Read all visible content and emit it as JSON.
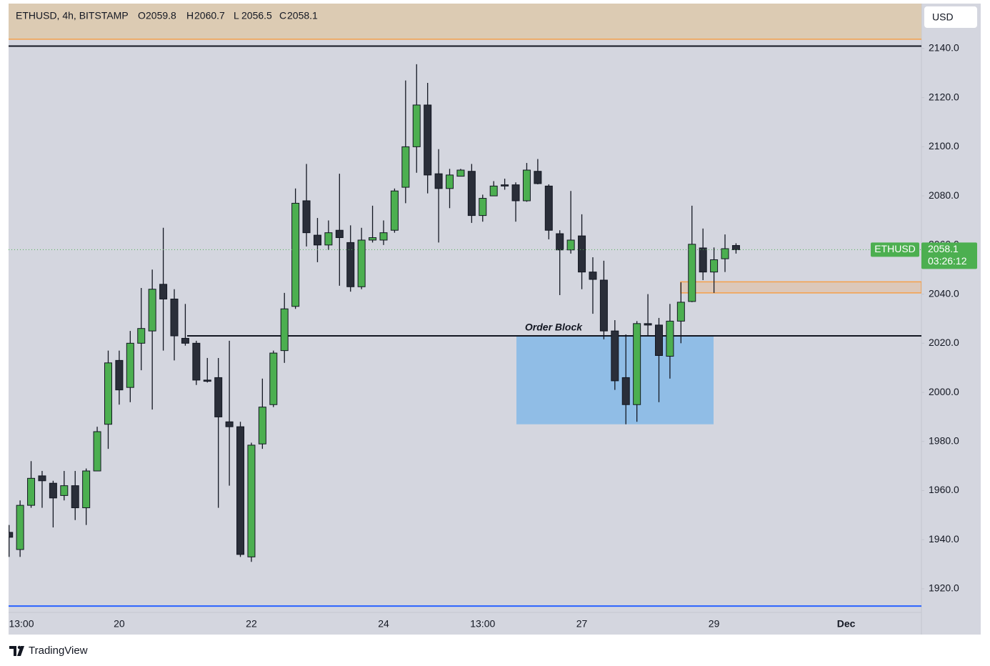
{
  "chart_data": {
    "type": "candlestick",
    "symbol": "ETHUSD, 4h, BITSTAMP",
    "ohlc_labels": [
      "O",
      "H",
      "L",
      "C"
    ],
    "currency": "USD",
    "price_label": "ETHUSD",
    "countdown": "03:26:12",
    "brand": "TradingView",
    "up_color": "#4caf50",
    "down_color": "#2a2e39",
    "categories": [
      null,
      "13:00",
      null,
      null,
      null,
      null,
      null,
      null,
      null,
      null,
      "20",
      null,
      null,
      null,
      null,
      null,
      null,
      null,
      null,
      null,
      null,
      null,
      "22",
      null,
      null,
      null,
      null,
      null,
      null,
      null,
      null,
      null,
      null,
      null,
      "24",
      null,
      null,
      null,
      null,
      null,
      null,
      null,
      null,
      "13:00",
      null,
      null,
      null,
      null,
      null,
      null,
      null,
      null,
      "27",
      null,
      null,
      null,
      null,
      null,
      null,
      null,
      null,
      null,
      null,
      null,
      "29",
      null,
      null,
      null,
      null,
      null,
      null,
      null,
      null,
      null,
      null,
      null,
      "Dec",
      null,
      null,
      null,
      null,
      null,
      null
    ],
    "open": [
      1943,
      1936,
      1954,
      1966,
      1963,
      1958,
      1962,
      1953,
      1968,
      1987,
      2013,
      2002,
      2020,
      2025,
      2044,
      2038,
      2022,
      2020,
      2005,
      2006,
      1988,
      1986,
      1933,
      1979,
      1995,
      2017,
      2035,
      2078,
      2064,
      2060,
      2066,
      2061,
      2043,
      2062,
      2062,
      2066,
      2083.5,
      2100,
      2117,
      2089,
      2083,
      2088,
      2090,
      2072,
      2080,
      2084.5,
      2084.5,
      2078,
      2090,
      2084,
      2064.6,
      2058,
      2063.7,
      2049,
      2045.7,
      2025,
      2006,
      1995,
      2028,
      2027.4,
      2014.7,
      2029,
      2037,
      2058.8,
      2049,
      2054.4,
      2059.8,
      null,
      null,
      null,
      null,
      null,
      null,
      null,
      null,
      null,
      null,
      null,
      null,
      null,
      null,
      null,
      null
    ],
    "high": [
      1946,
      1956,
      1972,
      1968,
      1964,
      1968,
      1968,
      1969,
      1986,
      2017,
      2017,
      2025,
      2042.5,
      2050,
      2067,
      2042,
      2036,
      2021,
      2014,
      2014,
      2021,
      1988,
      1979.5,
      2005.6,
      2017,
      2040.5,
      2083,
      2093,
      2071,
      2070,
      2089,
      2068,
      2067,
      2076,
      2070,
      2083,
      2127,
      2133.6,
      2126,
      2099,
      2091,
      2091,
      2093,
      2080.5,
      2086,
      2087,
      2085.5,
      2093.4,
      2095,
      2084.7,
      2066,
      2082,
      2072.5,
      2055,
      2053.6,
      2029.4,
      2023.6,
      2029,
      2040,
      2030.3,
      2036,
      2044.8,
      2076,
      2066.7,
      2059,
      2064.3,
      2060.7,
      null,
      null,
      null,
      null,
      null,
      null,
      null,
      null,
      null,
      null,
      null,
      null,
      null,
      null,
      null,
      null
    ],
    "low": [
      1933,
      1933,
      1953,
      1953,
      1945,
      1956,
      1948,
      1946,
      1968,
      1977,
      1995,
      1996,
      2009,
      1993,
      2017,
      2013,
      2019,
      2003,
      2004,
      1953,
      1962,
      1933,
      1931,
      1977,
      1994,
      2012,
      2034,
      2059.4,
      2053,
      2058,
      2043.4,
      2041,
      2042,
      2061,
      2060,
      2065,
      2077,
      2089.4,
      2081,
      2061,
      2075,
      2088,
      2069,
      2069.5,
      2080,
      2082.5,
      2069.5,
      2077.6,
      2084.7,
      2062.3,
      2039.6,
      2056.5,
      2042,
      2032,
      2021.6,
      2001,
      1987,
      1988,
      2023,
      1996,
      2005.6,
      2020,
      2036.7,
      2045.7,
      2040.5,
      2049,
      2056.5,
      null,
      null,
      null,
      null,
      null,
      null,
      null,
      null,
      null,
      null,
      null,
      null,
      null,
      null,
      null,
      null
    ],
    "close": [
      1941,
      1954,
      1965,
      1964,
      1957,
      1962,
      1953,
      1968,
      1984,
      2012,
      2001,
      2020,
      2026,
      2042,
      2038,
      2023,
      2020,
      2005,
      2004.5,
      1990,
      1986,
      1934,
      1978.5,
      1994,
      2016,
      2034,
      2077,
      2065,
      2060,
      2065,
      2063,
      2043,
      2062,
      2063,
      2065,
      2082,
      2100,
      2117,
      2088.5,
      2083,
      2088.5,
      2090.5,
      2072,
      2079,
      2084,
      2084,
      2078,
      2090.5,
      2085,
      2066,
      2058,
      2062,
      2049,
      2046,
      2025,
      2004.7,
      1995,
      2028,
      2027.4,
      2015,
      2029,
      2036.7,
      2060.3,
      2049,
      2054,
      2058.5,
      2058.1,
      null,
      null,
      null,
      null,
      null,
      null,
      null,
      null,
      null,
      null,
      null,
      null,
      null,
      null,
      null,
      null
    ],
    "ylim": [
      1910.4,
      2158.3
    ],
    "yticks": [
      {
        "value": 1920,
        "label": "1920.0"
      },
      {
        "value": 1940,
        "label": "1940.0"
      },
      {
        "value": 1960,
        "label": "1960.0"
      },
      {
        "value": 1980,
        "label": "1980.0"
      },
      {
        "value": 2000,
        "label": "2000.0"
      },
      {
        "value": 2020,
        "label": "2020.0"
      },
      {
        "value": 2040,
        "label": "2040.0"
      },
      {
        "value": 2060,
        "label": "2060.0"
      },
      {
        "value": 2080,
        "label": "2080.0"
      },
      {
        "value": 2100,
        "label": "2100.0"
      },
      {
        "value": 2120,
        "label": "2120.0"
      },
      {
        "value": 2140,
        "label": "2140.0"
      }
    ],
    "levels": [
      {
        "value": 2141,
        "color": "#131722"
      },
      {
        "value": 2023,
        "color": "#131722"
      },
      {
        "value": 1913,
        "color": "#2962ff"
      }
    ],
    "supply_zone": {
      "value": 2143.8,
      "color": "#f5a04a",
      "fill": "#dccbb3"
    },
    "order_block": {
      "name": "Order Block",
      "low": 1987,
      "high": 2023,
      "color": "#90bde6"
    },
    "demand_box": {
      "low": 2040.5,
      "high": 2045,
      "color": "#f5a04a"
    }
  }
}
